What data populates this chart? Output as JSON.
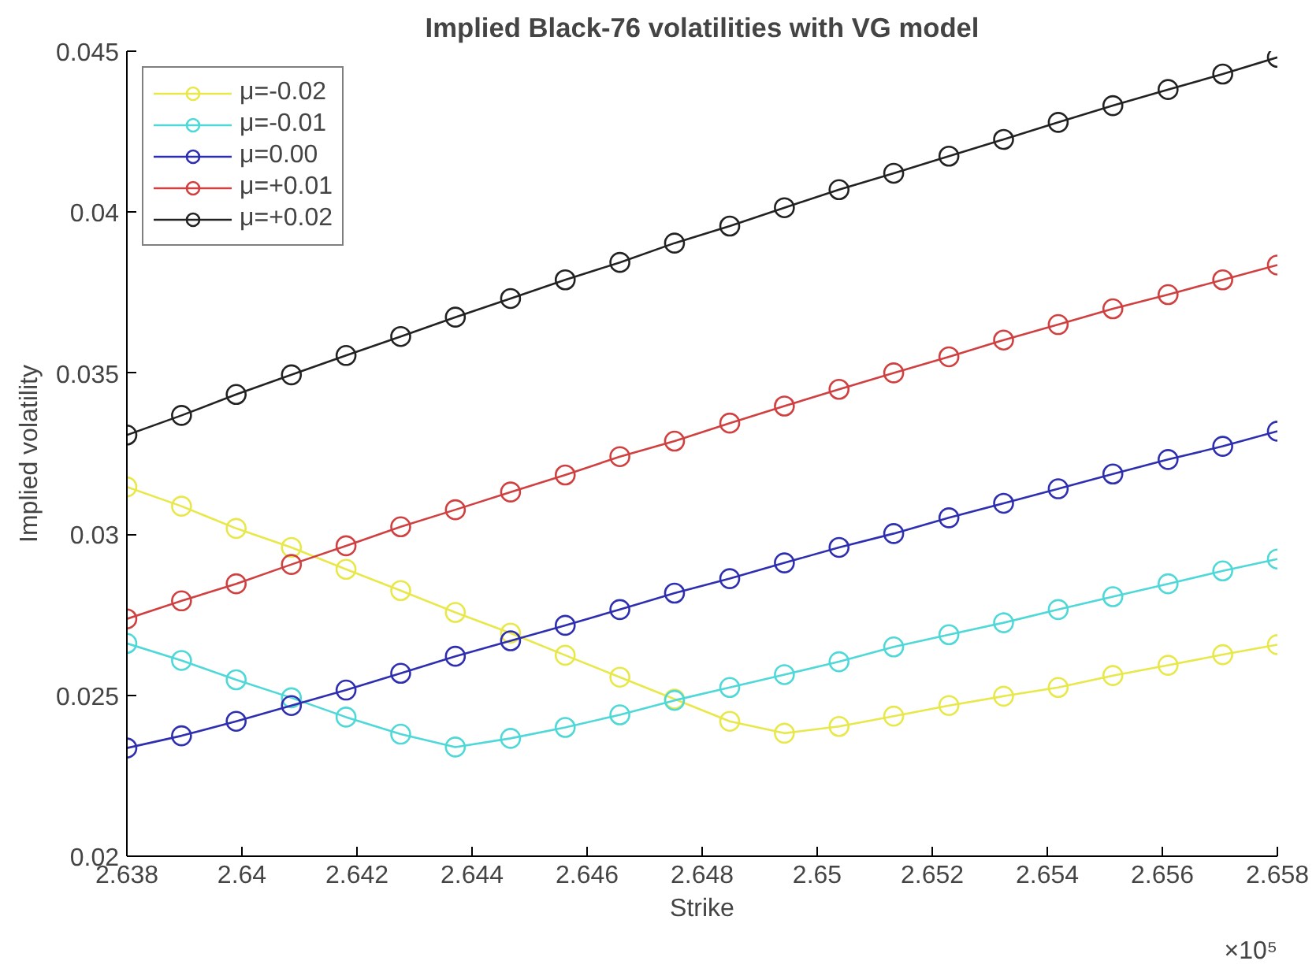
{
  "chart_data": {
    "type": "line",
    "title": "Implied Black-76 volatilities with VG model",
    "xlabel": "Strike",
    "ylabel": "Implied volatility",
    "annotations": [
      "×10⁵"
    ],
    "x": [
      2.638,
      2.63895,
      2.6399,
      2.64086,
      2.64181,
      2.64276,
      2.64371,
      2.64467,
      2.64562,
      2.64657,
      2.64752,
      2.64848,
      2.64943,
      2.65038,
      2.65133,
      2.65229,
      2.65324,
      2.65419,
      2.65514,
      2.6561,
      2.65705,
      2.658
    ],
    "series": [
      {
        "name": "μ=-0.02",
        "color": "#e8e84a",
        "values": [
          0.03147,
          0.03087,
          0.03018,
          0.02959,
          0.02891,
          0.02825,
          0.02757,
          0.02693,
          0.02624,
          0.02556,
          0.02488,
          0.02419,
          0.02382,
          0.02403,
          0.02435,
          0.02468,
          0.02497,
          0.02524,
          0.02561,
          0.02593,
          0.02626,
          0.02657
        ]
      },
      {
        "name": "μ=-0.01",
        "color": "#4fd8d8",
        "values": [
          0.02661,
          0.02608,
          0.02548,
          0.02492,
          0.02432,
          0.02379,
          0.02339,
          0.02366,
          0.024,
          0.02439,
          0.02484,
          0.02524,
          0.02564,
          0.02604,
          0.0265,
          0.02688,
          0.02725,
          0.02766,
          0.02806,
          0.02846,
          0.02886,
          0.02923
        ]
      },
      {
        "name": "μ=0.00",
        "color": "#2e2eb0",
        "values": [
          0.02336,
          0.02374,
          0.02419,
          0.02468,
          0.02516,
          0.02568,
          0.02621,
          0.02669,
          0.02717,
          0.02766,
          0.02817,
          0.02862,
          0.02911,
          0.02959,
          0.03002,
          0.03051,
          0.03096,
          0.03141,
          0.03187,
          0.03232,
          0.03273,
          0.0332
        ]
      },
      {
        "name": "μ=+0.01",
        "color": "#d04040",
        "values": [
          0.02737,
          0.02793,
          0.02846,
          0.02906,
          0.02964,
          0.03023,
          0.03076,
          0.03131,
          0.03184,
          0.03241,
          0.03289,
          0.03345,
          0.03398,
          0.0345,
          0.03501,
          0.03551,
          0.03603,
          0.03651,
          0.037,
          0.03744,
          0.0379,
          0.03836
        ]
      },
      {
        "name": "μ=+0.02",
        "color": "#222222",
        "values": [
          0.03308,
          0.03369,
          0.03434,
          0.03495,
          0.03555,
          0.03614,
          0.03674,
          0.03732,
          0.0379,
          0.03844,
          0.03904,
          0.03957,
          0.04014,
          0.0407,
          0.04121,
          0.04174,
          0.04226,
          0.04279,
          0.04331,
          0.04381,
          0.04429,
          0.04481
        ]
      }
    ],
    "xlim": [
      2.638,
      2.658
    ],
    "xticks": [
      2.638,
      2.64,
      2.642,
      2.644,
      2.646,
      2.648,
      2.65,
      2.652,
      2.654,
      2.656,
      2.658
    ],
    "ylim": [
      0.02,
      0.045
    ],
    "yticks": [
      0.02,
      0.025,
      0.03,
      0.035,
      0.04,
      0.045
    ],
    "grid": false,
    "legend": "top left",
    "marker": "circle",
    "line_style": "solid"
  }
}
